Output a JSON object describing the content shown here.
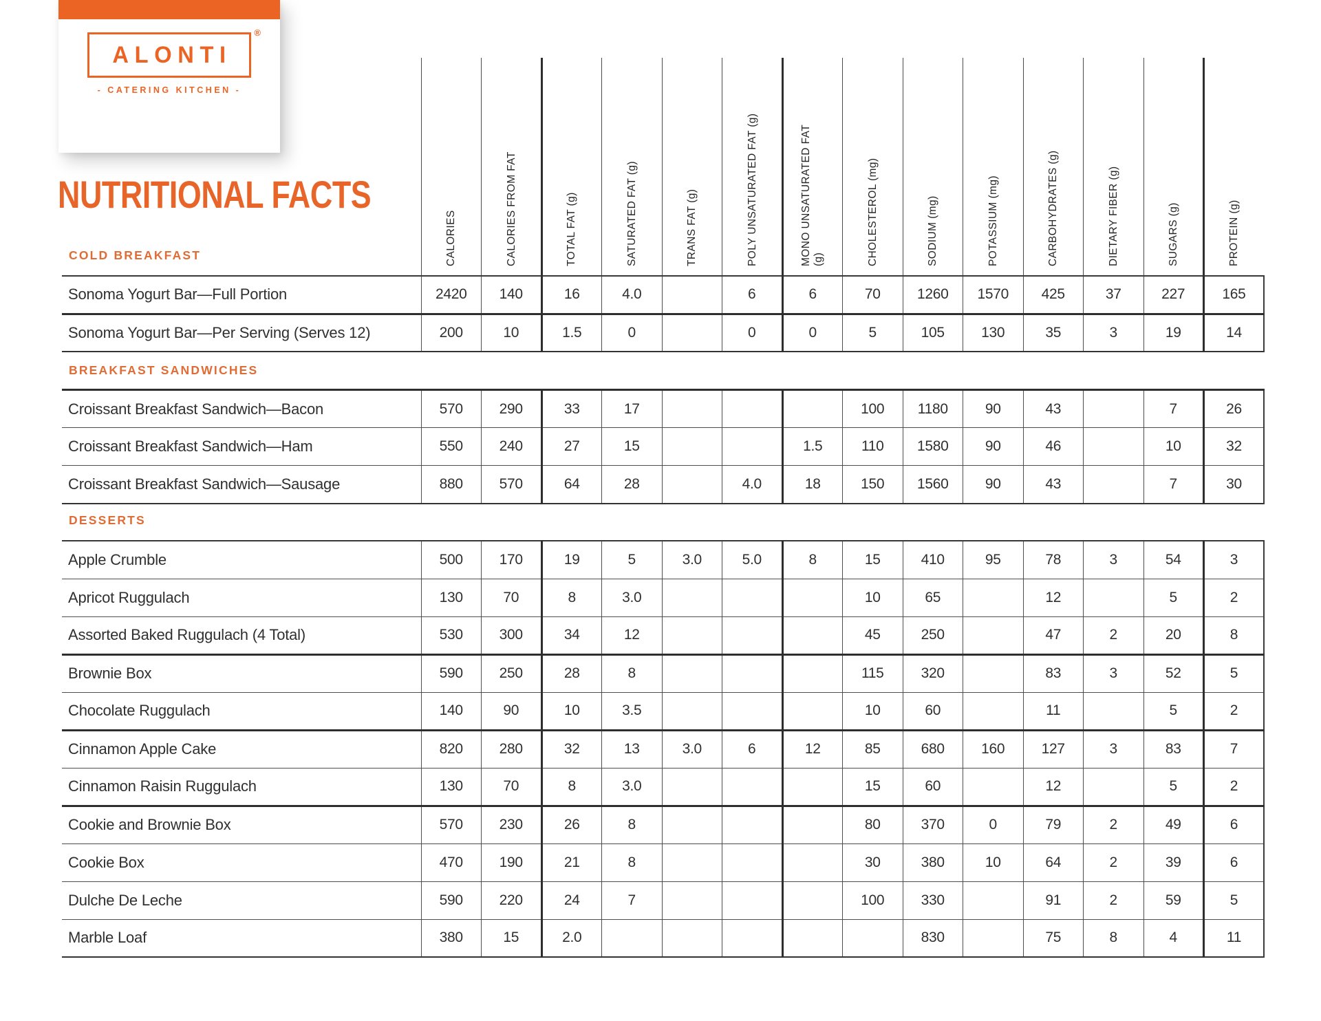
{
  "colors": {
    "accent": "#EB6424",
    "title": "#E8652A",
    "section_label": "#E06C35"
  },
  "brand": {
    "logo_text": "ALONTI",
    "registered_mark": "®",
    "tagline": "- CATERING KITCHEN -"
  },
  "page_title": "NUTRITIONAL FACTS",
  "columns": [
    "CALORIES",
    "CALORIES FROM FAT",
    "TOTAL FAT (g)",
    "SATURATED FAT (g)",
    "TRANS FAT (g)",
    "POLY UNSATURATED FAT (g)",
    "MONO UNSATURATED FAT\n(g)",
    "CHOLESTEROL (mg)",
    "SODIUM (mg)",
    "POTASSIUM (mg)",
    "CARBOHYDRATES (g)",
    "DIETARY FIBER (g)",
    "SUGARS (g)",
    "PROTEIN (g)"
  ],
  "sections": [
    {
      "label": "COLD BREAKFAST",
      "rows": [
        {
          "name": "Sonoma Yogurt Bar—Full Portion",
          "values": [
            "2420",
            "140",
            "16",
            "4.0",
            "",
            "6",
            "6",
            "70",
            "1260",
            "1570",
            "425",
            "37",
            "227",
            "165"
          ]
        },
        {
          "name": "Sonoma Yogurt Bar—Per Serving (Serves 12)",
          "values": [
            "200",
            "10",
            "1.5",
            "0",
            "",
            "0",
            "0",
            "5",
            "105",
            "130",
            "35",
            "3",
            "19",
            "14"
          ]
        }
      ]
    },
    {
      "label": "BREAKFAST SANDWICHES",
      "rows": [
        {
          "name": "Croissant Breakfast Sandwich—Bacon",
          "values": [
            "570",
            "290",
            "33",
            "17",
            "",
            "",
            "",
            "100",
            "1180",
            "90",
            "43",
            "",
            "7",
            "26"
          ]
        },
        {
          "name": "Croissant Breakfast Sandwich—Ham",
          "values": [
            "550",
            "240",
            "27",
            "15",
            "",
            "",
            "1.5",
            "110",
            "1580",
            "90",
            "46",
            "",
            "10",
            "32"
          ]
        },
        {
          "name": "Croissant Breakfast Sandwich—Sausage",
          "values": [
            "880",
            "570",
            "64",
            "28",
            "",
            "4.0",
            "18",
            "150",
            "1560",
            "90",
            "43",
            "",
            "7",
            "30"
          ]
        }
      ]
    },
    {
      "label": "DESSERTS",
      "rows": [
        {
          "name": "Apple Crumble",
          "values": [
            "500",
            "170",
            "19",
            "5",
            "3.0",
            "5.0",
            "8",
            "15",
            "410",
            "95",
            "78",
            "3",
            "54",
            "3"
          ]
        },
        {
          "name": "Apricot Ruggulach",
          "values": [
            "130",
            "70",
            "8",
            "3.0",
            "",
            "",
            "",
            "10",
            "65",
            "",
            "12",
            "",
            "5",
            "2"
          ]
        },
        {
          "name": "Assorted Baked Ruggulach (4 Total)",
          "values": [
            "530",
            "300",
            "34",
            "12",
            "",
            "",
            "",
            "45",
            "250",
            "",
            "47",
            "2",
            "20",
            "8"
          ]
        },
        {
          "name": "Brownie Box",
          "values": [
            "590",
            "250",
            "28",
            "8",
            "",
            "",
            "",
            "115",
            "320",
            "",
            "83",
            "3",
            "52",
            "5"
          ]
        },
        {
          "name": "Chocolate Ruggulach",
          "values": [
            "140",
            "90",
            "10",
            "3.5",
            "",
            "",
            "",
            "10",
            "60",
            "",
            "11",
            "",
            "5",
            "2"
          ]
        },
        {
          "name": "Cinnamon Apple Cake",
          "values": [
            "820",
            "280",
            "32",
            "13",
            "3.0",
            "6",
            "12",
            "85",
            "680",
            "160",
            "127",
            "3",
            "83",
            "7"
          ]
        },
        {
          "name": "Cinnamon Raisin Ruggulach",
          "values": [
            "130",
            "70",
            "8",
            "3.0",
            "",
            "",
            "",
            "15",
            "60",
            "",
            "12",
            "",
            "5",
            "2"
          ]
        },
        {
          "name": "Cookie and Brownie Box",
          "values": [
            "570",
            "230",
            "26",
            "8",
            "",
            "",
            "",
            "80",
            "370",
            "0",
            "79",
            "2",
            "49",
            "6"
          ]
        },
        {
          "name": "Cookie Box",
          "values": [
            "470",
            "190",
            "21",
            "8",
            "",
            "",
            "",
            "30",
            "380",
            "10",
            "64",
            "2",
            "39",
            "6"
          ]
        },
        {
          "name": "Dulche De Leche",
          "values": [
            "590",
            "220",
            "24",
            "7",
            "",
            "",
            "",
            "100",
            "330",
            "",
            "91",
            "2",
            "59",
            "5"
          ]
        },
        {
          "name": "Marble Loaf",
          "values": [
            "380",
            "15",
            "2.0",
            "",
            "",
            "",
            "",
            "",
            "830",
            "",
            "75",
            "8",
            "4",
            "11"
          ]
        }
      ]
    }
  ]
}
